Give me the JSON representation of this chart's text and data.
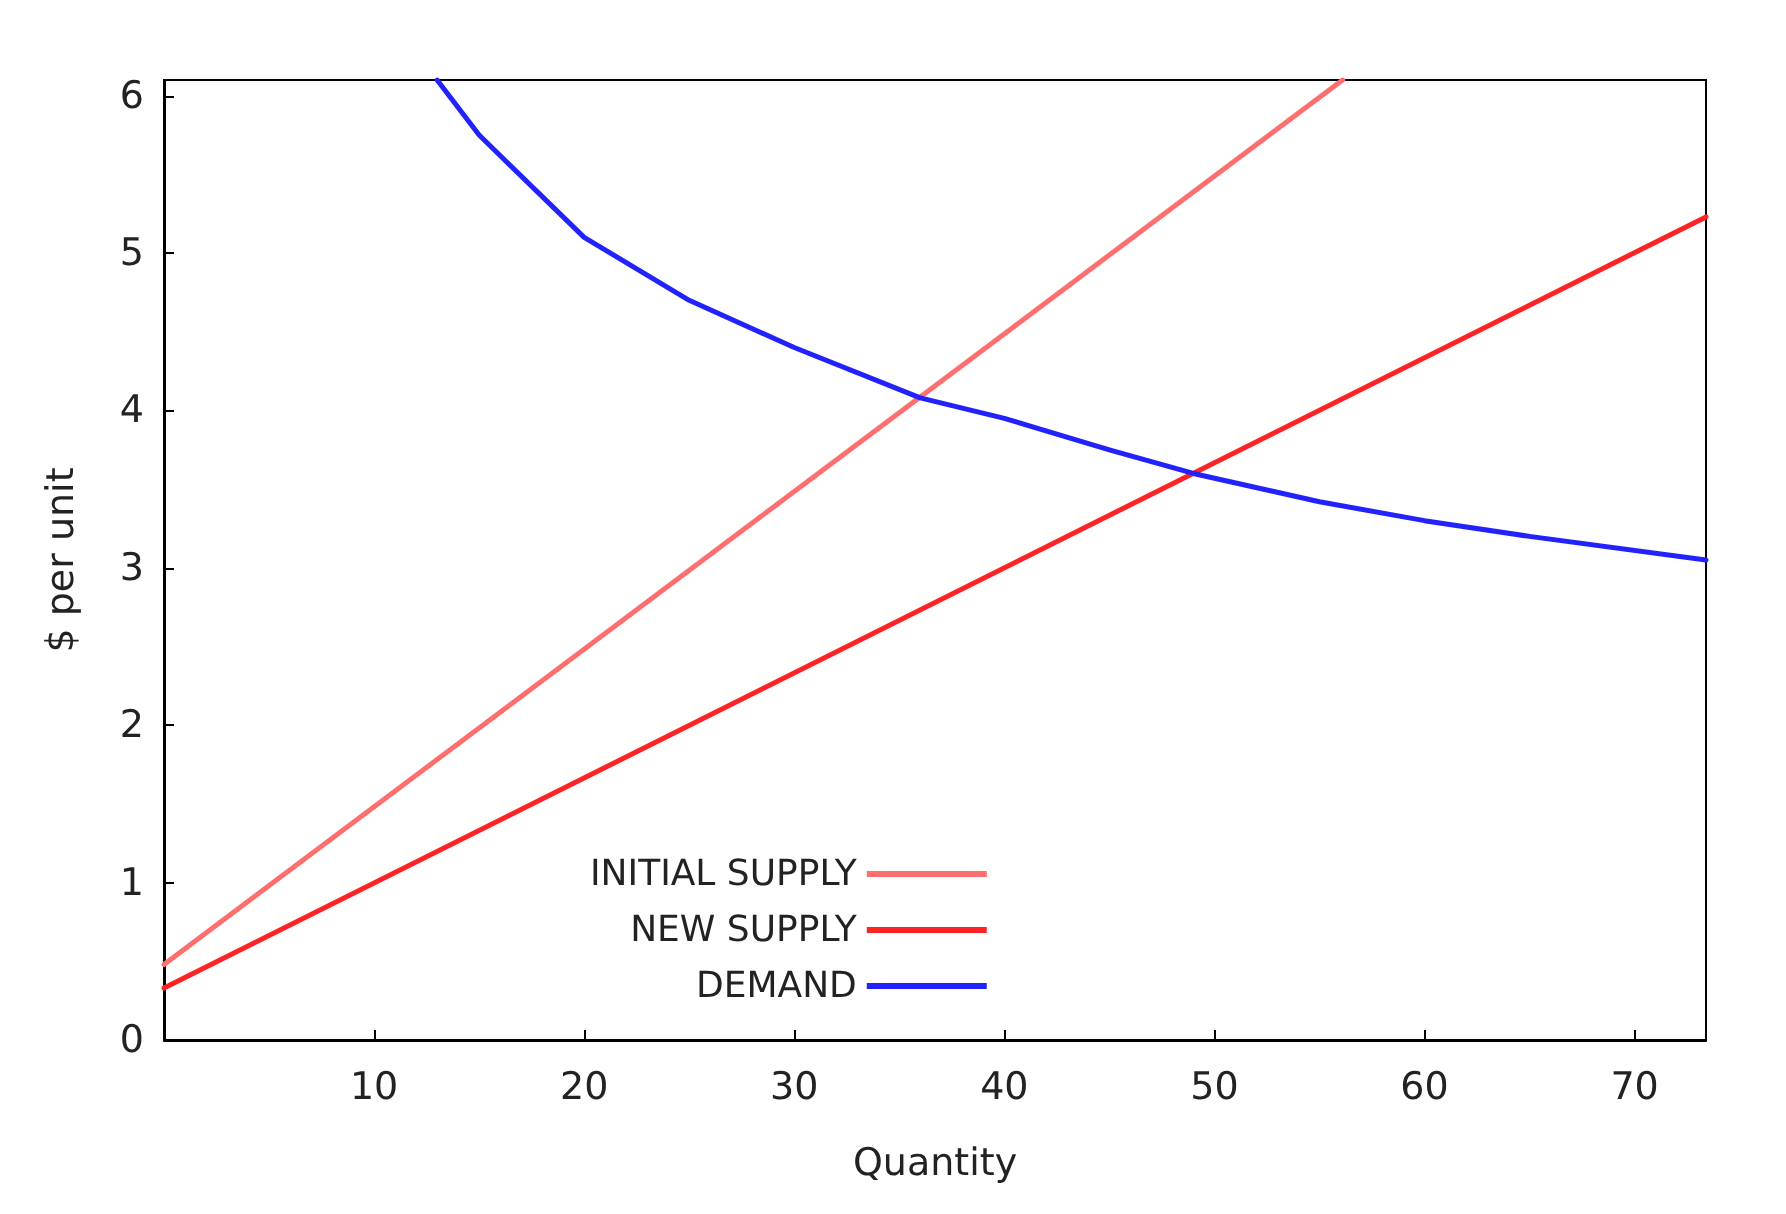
{
  "chart_data": {
    "type": "line",
    "xlabel": "Quantity",
    "ylabel": "$ per unit",
    "xlim": [
      0,
      73.4
    ],
    "ylim": [
      0,
      6.1
    ],
    "xticks": [
      10,
      20,
      30,
      40,
      50,
      60,
      70
    ],
    "yticks": [
      0,
      1,
      2,
      3,
      4,
      5,
      6
    ],
    "grid": false,
    "legend": "bottom",
    "marker": "none",
    "line_style": "solid",
    "series": [
      {
        "name": "INITIAL SUPPLY",
        "color": "#ff6f6f",
        "x": [
          0,
          56.1
        ],
        "values": [
          0.48,
          6.1
        ]
      },
      {
        "name": "NEW SUPPLY",
        "color": "#ff2222",
        "x": [
          0,
          73.4
        ],
        "values": [
          0.33,
          5.23
        ]
      },
      {
        "name": "DEMAND",
        "color": "#2222ff",
        "x": [
          13,
          15,
          20,
          25,
          30,
          36,
          40,
          45,
          49,
          55,
          60,
          65,
          73.4
        ],
        "values": [
          6.1,
          5.75,
          5.1,
          4.7,
          4.4,
          4.08,
          3.95,
          3.75,
          3.6,
          3.42,
          3.3,
          3.2,
          3.05
        ]
      }
    ]
  }
}
